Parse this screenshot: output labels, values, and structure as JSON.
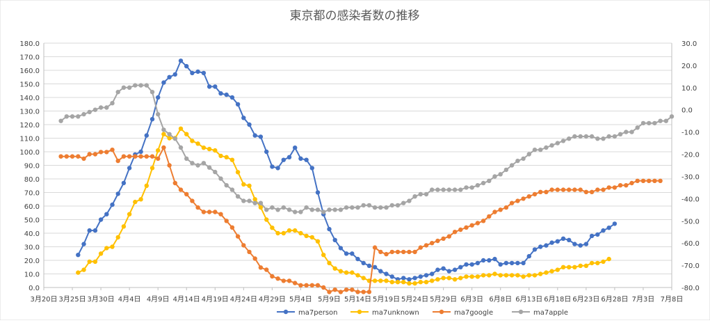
{
  "chart_data": {
    "type": "line",
    "title": "東京都の感染者数の推移",
    "xlabel": "",
    "ylabel": "",
    "x_start": "3月20日",
    "x_end": "7月8日",
    "x_tick_labels": [
      "3月20日",
      "3月25日",
      "3月30日",
      "4月4日",
      "4月9日",
      "4月14日",
      "4月19日",
      "4月24日",
      "4月29日",
      "5月4日",
      "5月9日",
      "5月14日",
      "5月19日",
      "5月24日",
      "5月29日",
      "6月3日",
      "6月8日",
      "6月13日",
      "6月18日",
      "6月23日",
      "6月28日",
      "7月3日",
      "7月8日"
    ],
    "ylim_left": [
      0,
      180
    ],
    "yticks_left": [
      "0.0",
      "10.0",
      "20.0",
      "30.0",
      "40.0",
      "50.0",
      "60.0",
      "70.0",
      "80.0",
      "90.0",
      "100.0",
      "110.0",
      "120.0",
      "130.0",
      "140.0",
      "150.0",
      "160.0",
      "170.0",
      "180.0"
    ],
    "ylim_right": [
      -80,
      30
    ],
    "yticks_right": [
      "30.0",
      "20.0",
      "10.0",
      "0.0",
      "-10.0",
      "-20.0",
      "-30.0",
      "-40.0",
      "-50.0",
      "-60.0",
      "-70.0",
      "-80.0"
    ],
    "grid": true,
    "legend_position": "bottom",
    "series": [
      {
        "name": "ma7person",
        "color": "#4472c4",
        "axis": "left",
        "start": "3月26日",
        "values": [
          24,
          32,
          42,
          42,
          50,
          54,
          61,
          69,
          77,
          88,
          98,
          100,
          112,
          124,
          140,
          151,
          155,
          157,
          167,
          163,
          158,
          159,
          158,
          148,
          148,
          143,
          142,
          140,
          135,
          125,
          120,
          112,
          111,
          100,
          89,
          88,
          94,
          96,
          103,
          95,
          94,
          88,
          70,
          54,
          43,
          35,
          29,
          25,
          25,
          21,
          18,
          16,
          15,
          12,
          10,
          8,
          6,
          7,
          6,
          7,
          8,
          9,
          10,
          13,
          14,
          12,
          13,
          15,
          17,
          17,
          18,
          20,
          20,
          21,
          17,
          18,
          18,
          18,
          18,
          23,
          28,
          30,
          31,
          33,
          34,
          36,
          35,
          32,
          31,
          32,
          38,
          39,
          42,
          44,
          47
        ]
      },
      {
        "name": "ma7unknown",
        "color": "#ffc000",
        "axis": "left",
        "start": "3月26日",
        "values": [
          11,
          13,
          19,
          19,
          25,
          29,
          30,
          37,
          45,
          54,
          63,
          65,
          75,
          88,
          101,
          113,
          110,
          110,
          117,
          113,
          108,
          106,
          103,
          102,
          101,
          97,
          96,
          94,
          85,
          76,
          75,
          65,
          59,
          50,
          44,
          40,
          40,
          42,
          42,
          40,
          38,
          37,
          34,
          24,
          18,
          14,
          12,
          11,
          11,
          9,
          7,
          5,
          5,
          5,
          5,
          4,
          4,
          4,
          3,
          3,
          4,
          4,
          5,
          6,
          7,
          7,
          6,
          7,
          8,
          8,
          8,
          9,
          9,
          10,
          9,
          9,
          9,
          9,
          8,
          9,
          9,
          10,
          11,
          12,
          13,
          15,
          15,
          15,
          16,
          16,
          18,
          18,
          19,
          21
        ]
      },
      {
        "name": "ma7google",
        "color": "#ed7d31",
        "axis": "right",
        "start": "3月23日",
        "values": [
          -21,
          -21,
          -21,
          -21,
          -22,
          -20,
          -20,
          -19,
          -19,
          -18,
          -23,
          -21,
          -21,
          -21,
          -21,
          -21,
          -21,
          -22,
          -17,
          -25,
          -33,
          -36,
          -38,
          -41,
          -44,
          -46,
          -46,
          -46,
          -47,
          -50,
          -53,
          -57,
          -61,
          -64,
          -67,
          -71,
          -72,
          -75,
          -76,
          -77,
          -77,
          -78,
          -79,
          -79,
          -79,
          -79,
          -80,
          -82,
          -81,
          -82,
          -81,
          -81,
          -82,
          -82,
          -82,
          -62,
          -64,
          -65,
          -64,
          -64,
          -64,
          -64,
          -64,
          -62,
          -61,
          -60,
          -59,
          -58,
          -57,
          -55,
          -54,
          -53,
          -52,
          -51,
          -50,
          -48,
          -46,
          -45,
          -44,
          -42,
          -41,
          -40,
          -39,
          -38,
          -37,
          -37,
          -36,
          -36,
          -36,
          -36,
          -36,
          -36,
          -37,
          -37,
          -36,
          -36,
          -35,
          -35,
          -34,
          -34,
          -33,
          -32,
          -32,
          -32,
          -32,
          -32
        ]
      },
      {
        "name": "ma7apple",
        "color": "#a5a5a5",
        "axis": "right",
        "start": "3月23日",
        "values": [
          -5,
          -3,
          -3,
          -3,
          -2,
          -1,
          0,
          1,
          1,
          3,
          8,
          10,
          10,
          11,
          11,
          11,
          8,
          -2,
          -9,
          -11,
          -13,
          -17,
          -22,
          -24,
          -25,
          -24,
          -26,
          -28,
          -31,
          -34,
          -36,
          -39,
          -41,
          -41,
          -42,
          -42,
          -45,
          -44,
          -45,
          -44,
          -45,
          -46,
          -46,
          -44,
          -45,
          -45,
          -46,
          -45,
          -45,
          -45,
          -44,
          -44,
          -44,
          -43,
          -43,
          -44,
          -44,
          -44,
          -43,
          -43,
          -42,
          -41,
          -39,
          -38,
          -38,
          -36,
          -36,
          -36,
          -36,
          -36,
          -36,
          -35,
          -35,
          -34,
          -33,
          -32,
          -30,
          -29,
          -27,
          -25,
          -23,
          -22,
          -20,
          -18,
          -18,
          -17,
          -16,
          -15,
          -14,
          -13,
          -12,
          -12,
          -12,
          -12,
          -13,
          -13,
          -12,
          -12,
          -11,
          -10,
          -10,
          -8,
          -6,
          -6,
          -6,
          -5,
          -5,
          -3
        ]
      }
    ]
  }
}
